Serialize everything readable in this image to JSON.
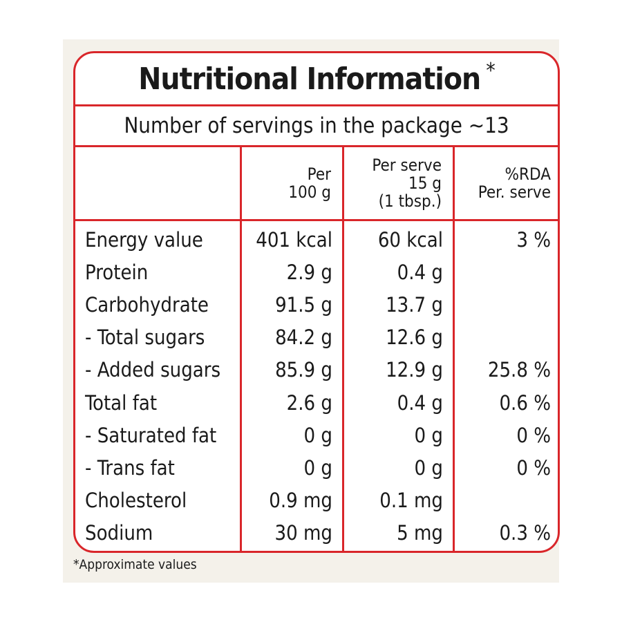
{
  "title": "Nutritional Information",
  "title_star": "*",
  "servings_text": "Number of servings in the package ~13",
  "columns": {
    "per100": [
      "Per",
      "100 g"
    ],
    "perServe": [
      "Per serve",
      "15 g",
      "(1 tbsp.)"
    ],
    "rda": [
      "%RDA",
      "Per. serve"
    ]
  },
  "rows": [
    {
      "name": "Energy value",
      "per100": "401 kcal",
      "perServe": "60 kcal",
      "rda": "3 %"
    },
    {
      "name": "Protein",
      "per100": "2.9 g",
      "perServe": "0.4 g",
      "rda": ""
    },
    {
      "name": "Carbohydrate",
      "per100": "91.5 g",
      "perServe": "13.7 g",
      "rda": ""
    },
    {
      "name": "- Total sugars",
      "per100": "84.2 g",
      "perServe": "12.6 g",
      "rda": ""
    },
    {
      "name": "- Added sugars",
      "per100": "85.9 g",
      "perServe": "12.9 g",
      "rda": "25.8 %"
    },
    {
      "name": "Total fat",
      "per100": "2.6 g",
      "perServe": "0.4 g",
      "rda": "0.6 %"
    },
    {
      "name": "- Saturated fat",
      "per100": "0 g",
      "perServe": "0 g",
      "rda": "0 %"
    },
    {
      "name": "- Trans fat",
      "per100": "0 g",
      "perServe": "0 g",
      "rda": "0 %"
    },
    {
      "name": "Cholesterol",
      "per100": "0.9 mg",
      "perServe": "0.1 mg",
      "rda": ""
    },
    {
      "name": "Sodium",
      "per100": "30 mg",
      "perServe": "5 mg",
      "rda": "0.3 %"
    }
  ],
  "footnote": "*Approximate values",
  "colors": {
    "border": "#d9262a",
    "text": "#1a1a1a",
    "backing": "#f4f1ea"
  }
}
